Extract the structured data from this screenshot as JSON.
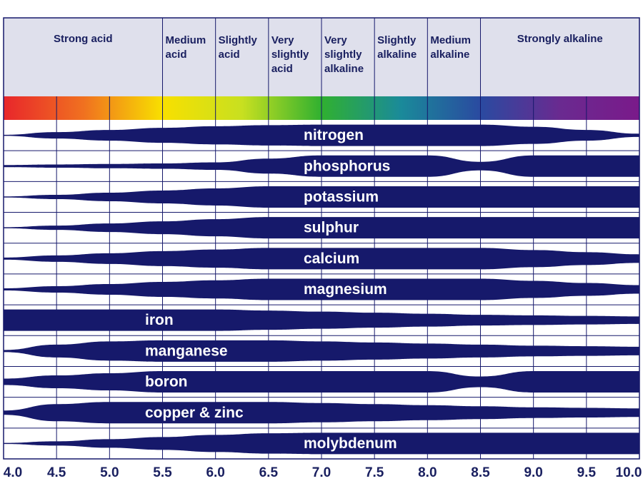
{
  "chart_data": {
    "type": "availability-band",
    "x": [
      4,
      4.5,
      5,
      5.5,
      6,
      6.5,
      7,
      7.5,
      8,
      8.5,
      9,
      9.5,
      10
    ],
    "xlim": [
      4,
      10
    ],
    "xticks": [
      {
        "value": 4,
        "label": "4.0"
      },
      {
        "value": 4.5,
        "label": "4.5"
      },
      {
        "value": 5,
        "label": "5.0"
      },
      {
        "value": 5.5,
        "label": "5.5"
      },
      {
        "value": 6,
        "label": "6.0"
      },
      {
        "value": 6.5,
        "label": "6.5"
      },
      {
        "value": 7,
        "label": "7.0"
      },
      {
        "value": 7.5,
        "label": "7.5"
      },
      {
        "value": 8,
        "label": "8.0"
      },
      {
        "value": 8.5,
        "label": "8.5"
      },
      {
        "value": 9,
        "label": "9.0"
      },
      {
        "value": 9.5,
        "label": "9.5"
      },
      {
        "value": 10,
        "label": "10.0"
      }
    ],
    "grid": true,
    "color": "#16196b",
    "scale_colors": [
      "#e8262b",
      "#f07020",
      "#f8e000",
      "#c8e020",
      "#30b030",
      "#1a8a9a",
      "#2a4aa0",
      "#6a2a90",
      "#7a1a8a"
    ],
    "zones": [
      {
        "name": "Strong acid",
        "range": [
          4,
          5.5
        ]
      },
      {
        "name": "Medium acid",
        "range": [
          5.5,
          6
        ]
      },
      {
        "name": "Slightly acid",
        "range": [
          6,
          6.5
        ]
      },
      {
        "name": "Very slightly acid",
        "range": [
          6.5,
          7
        ]
      },
      {
        "name": "Very slightly alkaline",
        "range": [
          7,
          7.5
        ]
      },
      {
        "name": "Slightly alkaline",
        "range": [
          7.5,
          8
        ]
      },
      {
        "name": "Medium alkaline",
        "range": [
          8,
          8.5
        ]
      },
      {
        "name": "Strongly alkaline",
        "range": [
          8.5,
          10
        ]
      }
    ],
    "series": [
      {
        "name": "nitrogen",
        "values": [
          0.05,
          0.3,
          0.5,
          0.7,
          0.85,
          0.95,
          1,
          1,
          1,
          1,
          0.8,
          0.5,
          0.15
        ]
      },
      {
        "name": "phosphorus",
        "values": [
          0.1,
          0.15,
          0.2,
          0.25,
          0.35,
          0.7,
          1,
          1,
          1,
          0.4,
          1,
          1,
          1
        ]
      },
      {
        "name": "potassium",
        "values": [
          0.05,
          0.2,
          0.4,
          0.6,
          0.8,
          1,
          1,
          1,
          1,
          1,
          1,
          1,
          1
        ]
      },
      {
        "name": "sulphur",
        "values": [
          0.05,
          0.2,
          0.4,
          0.6,
          0.8,
          1,
          1,
          1,
          1,
          1,
          1,
          1,
          1
        ]
      },
      {
        "name": "calcium",
        "values": [
          0.1,
          0.3,
          0.5,
          0.7,
          0.85,
          1,
          1,
          1,
          1,
          1,
          0.8,
          0.6,
          0.4
        ]
      },
      {
        "name": "magnesium",
        "values": [
          0.1,
          0.3,
          0.5,
          0.7,
          0.85,
          1,
          1,
          1,
          1,
          1,
          0.8,
          0.6,
          0.4
        ]
      },
      {
        "name": "iron",
        "values": [
          1,
          1,
          1,
          1,
          1,
          0.9,
          0.8,
          0.7,
          0.6,
          0.5,
          0.45,
          0.4,
          0.35
        ]
      },
      {
        "name": "manganese",
        "values": [
          0.1,
          0.6,
          0.9,
          1,
          1,
          1,
          0.9,
          0.8,
          0.7,
          0.6,
          0.5,
          0.45,
          0.4
        ]
      },
      {
        "name": "boron",
        "values": [
          0.3,
          0.6,
          0.8,
          1,
          1,
          1,
          1,
          1,
          1,
          0.5,
          1,
          1,
          1
        ]
      },
      {
        "name": "copper & zinc",
        "values": [
          0.2,
          0.8,
          1,
          1,
          1,
          1,
          0.9,
          0.8,
          0.7,
          0.6,
          0.5,
          0.45,
          0.4
        ]
      },
      {
        "name": "molybdenum",
        "values": [
          0.05,
          0.2,
          0.4,
          0.6,
          0.8,
          0.95,
          1,
          1,
          1,
          1,
          1,
          1,
          1
        ]
      }
    ]
  }
}
